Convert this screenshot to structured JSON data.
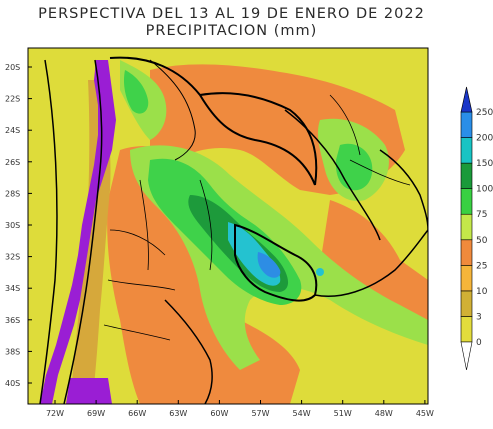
{
  "title": {
    "line1": "PERSPECTIVA DEL 13 AL 19 DE ENERO DE 2022",
    "line2": "PRECIPITACION (mm)"
  },
  "axes": {
    "lat_labels": [
      "20S",
      "22S",
      "24S",
      "26S",
      "28S",
      "30S",
      "32S",
      "34S",
      "36S",
      "38S",
      "40S"
    ],
    "lon_labels": [
      "72W",
      "69W",
      "66W",
      "63W",
      "60W",
      "57W",
      "54W",
      "51W",
      "48W",
      "45W"
    ]
  },
  "legend": {
    "thresholds": [
      "0",
      "3",
      "10",
      "25",
      "50",
      "75",
      "100",
      "150",
      "200",
      "250"
    ],
    "colors": [
      "#ffffff",
      "#e3dc3c",
      "#d1b035",
      "#f5b53a",
      "#f08a3c",
      "#c4e84a",
      "#39d042",
      "#1a9a3a",
      "#18c4c4",
      "#2a8ee8",
      "#1a36c8"
    ]
  },
  "palette": {
    "yellow": "#dedc3a",
    "gold": "#d6a83b",
    "orange": "#ef8a3e",
    "lightgreen": "#9be04a",
    "green": "#3fd24a",
    "darkgreen": "#1d9a3b",
    "cyan": "#24c2d0",
    "blue": "#2d8de4",
    "purple": "#9a1ed4",
    "border": "#000000"
  }
}
